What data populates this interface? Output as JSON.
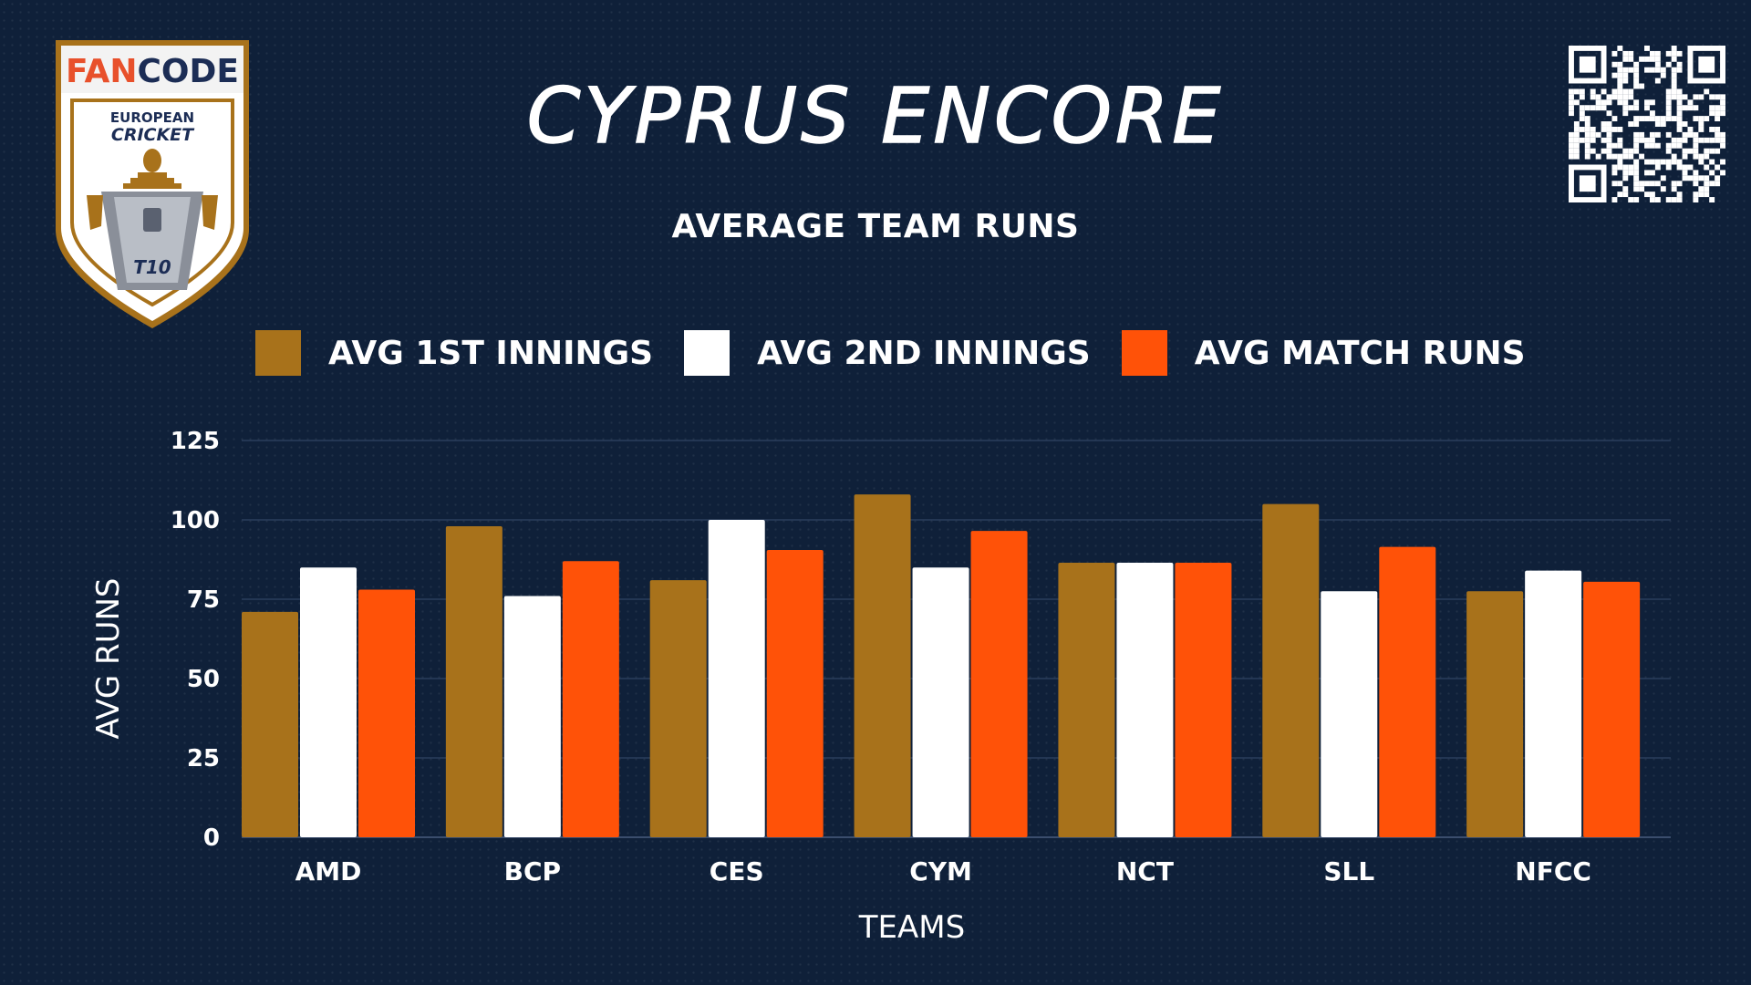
{
  "header": {
    "title": "CYPRUS ENCORE",
    "subtitle": "AVERAGE TEAM RUNS"
  },
  "logo": {
    "brand_fan": "FAN",
    "brand_code": "CODE",
    "line1": "EUROPEAN",
    "line2": "CRICKET",
    "badge": "T10"
  },
  "colors": {
    "background": "#0f2039",
    "series_1": "#a8721b",
    "series_2": "#ffffff",
    "series_3": "#ff5208",
    "gridline": "#2a3d5c"
  },
  "chart_data": {
    "type": "bar",
    "title": "AVERAGE TEAM RUNS",
    "xlabel": "TEAMS",
    "ylabel": "AVG RUNS",
    "ylim": [
      0,
      125
    ],
    "yticks": [
      0,
      25,
      50,
      75,
      100,
      125
    ],
    "grid": true,
    "legend_position": "top",
    "categories": [
      "AMD",
      "BCP",
      "CES",
      "CYM",
      "NCT",
      "SLL",
      "NFCC"
    ],
    "series": [
      {
        "name": "AVG 1ST INNINGS",
        "color": "#a8721b",
        "values": [
          71,
          98,
          81,
          108,
          86.5,
          105,
          77.5
        ]
      },
      {
        "name": "AVG 2ND INNINGS",
        "color": "#ffffff",
        "values": [
          85,
          76,
          100,
          85,
          86.5,
          77.5,
          84
        ]
      },
      {
        "name": "AVG MATCH RUNS",
        "color": "#ff5208",
        "values": [
          78,
          87,
          90.5,
          96.5,
          86.5,
          91.5,
          80.5
        ]
      }
    ]
  }
}
